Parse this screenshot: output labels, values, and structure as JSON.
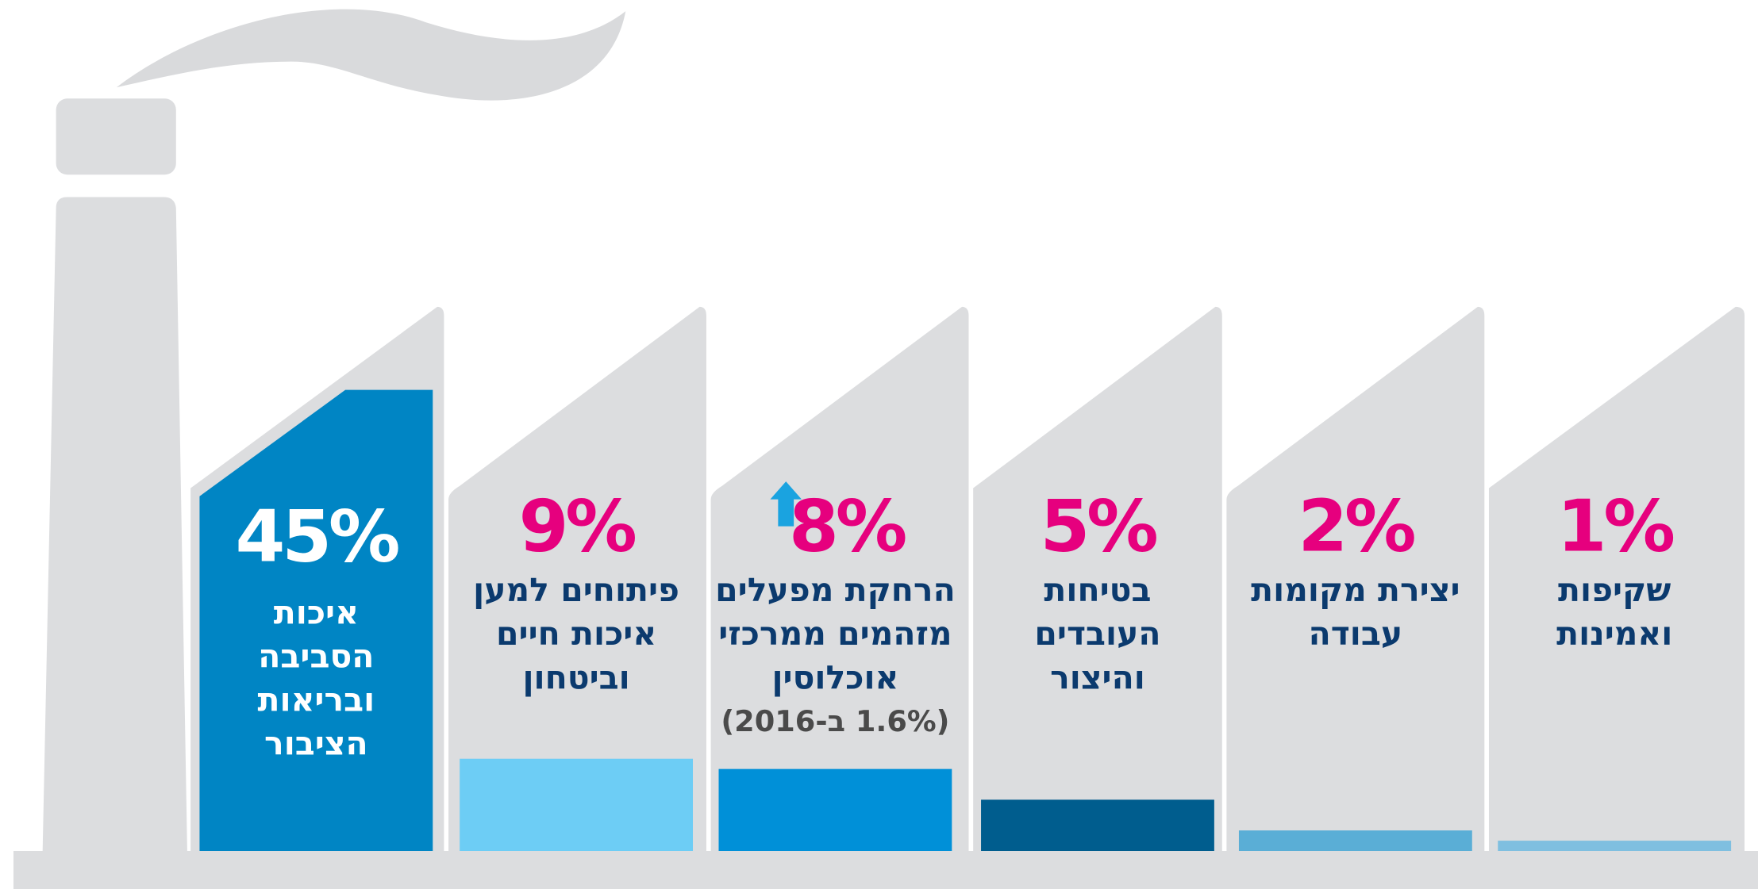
{
  "chart_data": {
    "type": "bar",
    "categories": [
      "איכות\nהסביבה\nובריאות\nהציבור",
      "פיתוחים למען\nאיכות חיים\nוביטחון",
      "הרחקת מפעלים\nמזהמים ממרכזי\nאוכלוסין",
      "בטיחות\nהעובדים\nוהיצור",
      "יצירת מקומות\nעבודה",
      "שקיפות\nואמינות"
    ],
    "values": [
      45,
      9,
      8,
      5,
      2,
      1
    ],
    "value_labels": [
      "45%",
      "9%",
      "8%",
      "5%",
      "2%",
      "1%"
    ],
    "notes": [
      null,
      null,
      "(1.6% ב-2016)",
      null,
      null,
      null
    ],
    "colors": [
      "#0085c4",
      "#6dcdf5",
      "#0090d8",
      "#005d8e",
      "#5aaed6",
      "#7fbfe0"
    ],
    "label_color": "#e6007e"
  }
}
